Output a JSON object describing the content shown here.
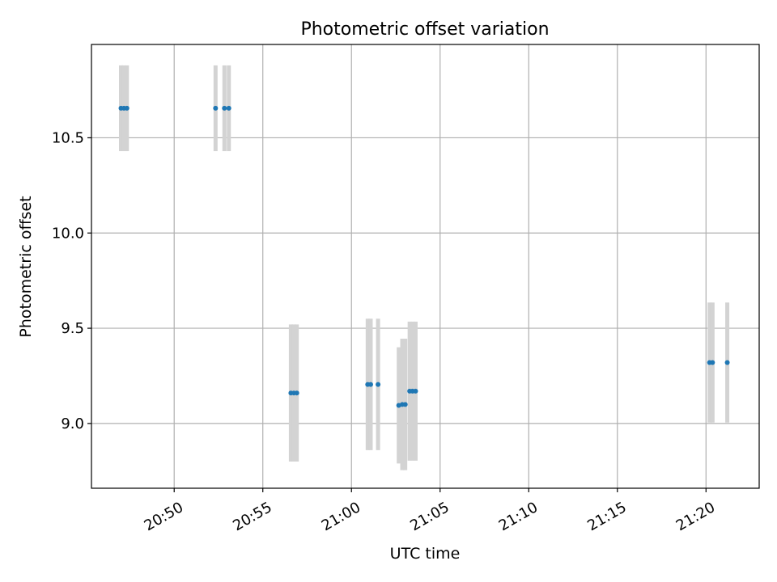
{
  "chart_data": {
    "type": "scatter",
    "title": "Photometric offset variation",
    "xlabel": "UTC time",
    "ylabel": "Photometric offset",
    "x_is_time": true,
    "xlim": [
      "20:45:20",
      "21:23:00"
    ],
    "ylim": [
      8.66,
      10.99
    ],
    "grid": true,
    "x_ticks": [
      "20:50",
      "20:55",
      "21:00",
      "21:05",
      "21:10",
      "21:15",
      "21:20"
    ],
    "y_ticks": [
      9.0,
      9.5,
      10.0,
      10.5
    ],
    "y_tick_labels": [
      "9.0",
      "9.5",
      "10.0",
      "10.5"
    ],
    "point_color": "#1f77b4",
    "errorbar_color": "#d3d3d3",
    "points": [
      {
        "x": "20:47:00",
        "y": 10.655,
        "err": 0.225
      },
      {
        "x": "20:47:10",
        "y": 10.655,
        "err": 0.225
      },
      {
        "x": "20:47:20",
        "y": 10.655,
        "err": 0.225
      },
      {
        "x": "20:52:20",
        "y": 10.655,
        "err": 0.225
      },
      {
        "x": "20:52:50",
        "y": 10.655,
        "err": 0.225
      },
      {
        "x": "20:53:05",
        "y": 10.655,
        "err": 0.225
      },
      {
        "x": "20:56:35",
        "y": 9.16,
        "err": 0.36
      },
      {
        "x": "20:56:45",
        "y": 9.16,
        "err": 0.36
      },
      {
        "x": "20:56:55",
        "y": 9.16,
        "err": 0.36
      },
      {
        "x": "21:00:55",
        "y": 9.205,
        "err": 0.345
      },
      {
        "x": "21:01:05",
        "y": 9.205,
        "err": 0.345
      },
      {
        "x": "21:01:30",
        "y": 9.205,
        "err": 0.345
      },
      {
        "x": "21:02:40",
        "y": 9.095,
        "err": 0.305
      },
      {
        "x": "21:02:52",
        "y": 9.1,
        "err": 0.345
      },
      {
        "x": "21:03:02",
        "y": 9.1,
        "err": 0.345
      },
      {
        "x": "21:03:17",
        "y": 9.17,
        "err": 0.365
      },
      {
        "x": "21:03:27",
        "y": 9.17,
        "err": 0.365
      },
      {
        "x": "21:03:37",
        "y": 9.17,
        "err": 0.365
      },
      {
        "x": "21:20:12",
        "y": 9.32,
        "err": 0.315
      },
      {
        "x": "21:20:22",
        "y": 9.32,
        "err": 0.315
      },
      {
        "x": "21:21:12",
        "y": 9.32,
        "err": 0.315
      }
    ]
  }
}
